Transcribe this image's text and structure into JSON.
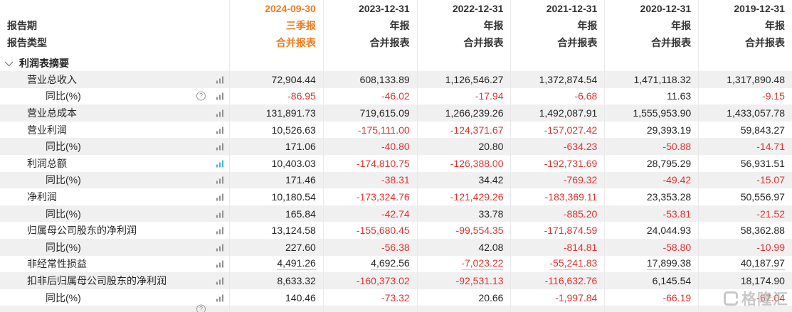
{
  "table": {
    "row_header": {
      "period_label": "报告期",
      "type_label": "报告类型"
    },
    "columns": [
      {
        "date": "2024-09-30",
        "period": "三季报",
        "report_type": "合并报表",
        "highlighted": true
      },
      {
        "date": "2023-12-31",
        "period": "年报",
        "report_type": "合并报表",
        "highlighted": false
      },
      {
        "date": "2022-12-31",
        "period": "年报",
        "report_type": "合并报表",
        "highlighted": false
      },
      {
        "date": "2021-12-31",
        "period": "年报",
        "report_type": "合并报表",
        "highlighted": false
      },
      {
        "date": "2020-12-31",
        "period": "年报",
        "report_type": "合并报表",
        "highlighted": false
      },
      {
        "date": "2019-12-31",
        "period": "年报",
        "report_type": "合并报表",
        "highlighted": false
      }
    ],
    "section": {
      "title": "利润表摘要"
    },
    "rows": [
      {
        "label": "营业总收入",
        "indent": 1,
        "chart_icon": "gray",
        "help_icon": false,
        "underline": false,
        "partial": false,
        "values": [
          "72,904.44",
          "608,133.89",
          "1,126,546.27",
          "1,372,874.54",
          "1,471,118.32",
          "1,317,890.48"
        ]
      },
      {
        "label": "同比(%)",
        "indent": 2,
        "chart_icon": "gray",
        "help_icon": true,
        "underline": false,
        "partial": false,
        "values": [
          "-86.95",
          "-46.02",
          "-17.94",
          "-6.68",
          "11.63",
          "-9.15"
        ]
      },
      {
        "label": "营业总成本",
        "indent": 1,
        "chart_icon": "gray",
        "help_icon": false,
        "underline": false,
        "partial": false,
        "values": [
          "131,891.73",
          "719,615.09",
          "1,266,239.26",
          "1,492,087.91",
          "1,555,953.90",
          "1,433,057.78"
        ]
      },
      {
        "label": "营业利润",
        "indent": 1,
        "chart_icon": "gray",
        "help_icon": false,
        "underline": false,
        "partial": false,
        "values": [
          "10,526.63",
          "-175,111.00",
          "-124,371.67",
          "-157,027.42",
          "29,393.19",
          "59,843.27"
        ]
      },
      {
        "label": "同比(%)",
        "indent": 2,
        "chart_icon": "gray",
        "help_icon": false,
        "underline": false,
        "partial": false,
        "values": [
          "171.06",
          "-40.80",
          "20.80",
          "-634.23",
          "-50.88",
          "-14.71"
        ]
      },
      {
        "label": "利润总额",
        "indent": 1,
        "chart_icon": "teal",
        "help_icon": false,
        "underline": false,
        "partial": false,
        "values": [
          "10,403.03",
          "-174,810.75",
          "-126,388.00",
          "-192,731.69",
          "28,795.29",
          "56,931.51"
        ]
      },
      {
        "label": "同比(%)",
        "indent": 2,
        "chart_icon": "gray",
        "help_icon": false,
        "underline": false,
        "partial": false,
        "values": [
          "171.46",
          "-38.31",
          "34.42",
          "-769.32",
          "-49.42",
          "-15.07"
        ]
      },
      {
        "label": "净利润",
        "indent": 1,
        "chart_icon": "gray",
        "help_icon": false,
        "underline": false,
        "partial": false,
        "values": [
          "10,180.54",
          "-173,324.76",
          "-121,429.26",
          "-183,369.11",
          "23,353.28",
          "50,556.97"
        ]
      },
      {
        "label": "同比(%)",
        "indent": 2,
        "chart_icon": "gray",
        "help_icon": false,
        "underline": false,
        "partial": false,
        "values": [
          "165.84",
          "-42.74",
          "33.78",
          "-885.20",
          "-53.81",
          "-21.52"
        ]
      },
      {
        "label": "归属母公司股东的净利润",
        "indent": 1,
        "chart_icon": "gray",
        "help_icon": false,
        "underline": false,
        "partial": false,
        "values": [
          "13,124.58",
          "-155,680.45",
          "-99,554.35",
          "-171,874.59",
          "24,044.93",
          "58,362.88"
        ]
      },
      {
        "label": "同比(%)",
        "indent": 2,
        "chart_icon": "gray",
        "help_icon": false,
        "underline": false,
        "partial": false,
        "values": [
          "227.60",
          "-56.38",
          "42.08",
          "-814.81",
          "-58.80",
          "-10.99"
        ]
      },
      {
        "label": "非经常性损益",
        "indent": 1,
        "chart_icon": "gray",
        "help_icon": false,
        "underline": true,
        "partial": false,
        "values": [
          "4,491.26",
          "4,692.56",
          "-7,023.22",
          "-55,241.83",
          "17,899.38",
          "40,187.97"
        ]
      },
      {
        "label": "扣非后归属母公司股东的净利润",
        "indent": 1,
        "chart_icon": "gray",
        "help_icon": false,
        "underline": false,
        "partial": false,
        "values": [
          "8,633.32",
          "-160,373.02",
          "-92,531.13",
          "-116,632.76",
          "6,145.54",
          "18,174.90"
        ]
      },
      {
        "label": "同比(%)",
        "indent": 2,
        "chart_icon": "gray",
        "help_icon": false,
        "underline": false,
        "partial": false,
        "values": [
          "140.46",
          "-73.32",
          "20.66",
          "-1,997.84",
          "-66.19",
          "-67.04"
        ]
      },
      {
        "label": "",
        "indent": 2,
        "chart_icon": "none",
        "help_icon": true,
        "underline": false,
        "partial": true,
        "values": [
          "",
          "",
          "",
          "",
          "",
          ""
        ]
      }
    ]
  },
  "watermark": {
    "text": "格隆汇"
  },
  "colors": {
    "accent_orange": "#ee7d1f",
    "negative_red": "#dd3430",
    "teal_icon": "#3fb7c7",
    "stripe_gray": "#f0f0f0"
  }
}
